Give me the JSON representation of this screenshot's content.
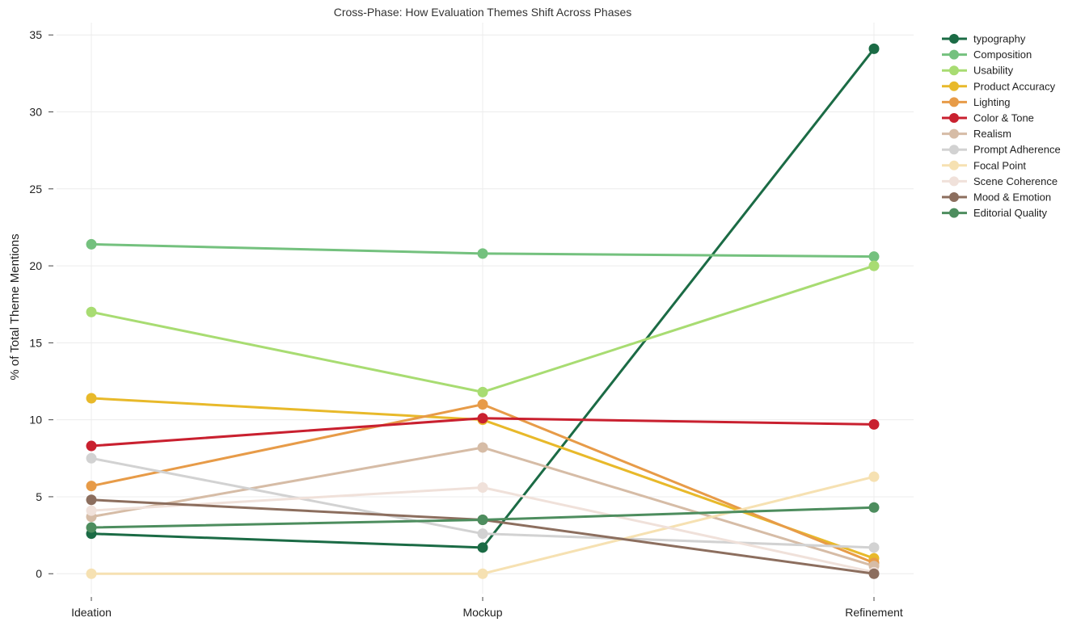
{
  "chart_data": {
    "type": "line",
    "title": "Cross-Phase: How Evaluation Themes Shift Across Phases",
    "xlabel": "",
    "ylabel": "% of Total Theme Mentions",
    "categories": [
      "Ideation",
      "Mockup",
      "Refinement"
    ],
    "ylim": [
      -1.3,
      35.8
    ],
    "yticks": [
      0,
      5,
      10,
      15,
      20,
      25,
      30,
      35
    ],
    "grid": true,
    "legend_position": "top-right",
    "series": [
      {
        "name": "typography",
        "color": "#1b6b45",
        "values": [
          2.6,
          1.7,
          34.1
        ]
      },
      {
        "name": "Composition",
        "color": "#74c17e",
        "values": [
          21.4,
          20.8,
          20.6
        ]
      },
      {
        "name": "Usability",
        "color": "#a8dc72",
        "values": [
          17.0,
          11.8,
          20.0
        ]
      },
      {
        "name": "Product Accuracy",
        "color": "#e8b92a",
        "values": [
          11.4,
          10.0,
          1.0
        ]
      },
      {
        "name": "Lighting",
        "color": "#e79b48",
        "values": [
          5.7,
          11.0,
          0.7
        ]
      },
      {
        "name": "Color & Tone",
        "color": "#c9202f",
        "values": [
          8.3,
          10.1,
          9.7
        ]
      },
      {
        "name": "Realism",
        "color": "#d6bca6",
        "values": [
          3.7,
          8.2,
          0.5
        ]
      },
      {
        "name": "Prompt Adherence",
        "color": "#d2d2d2",
        "values": [
          7.5,
          2.6,
          1.7
        ]
      },
      {
        "name": "Focal Point",
        "color": "#f6e1b2",
        "values": [
          0.0,
          0.0,
          6.3
        ]
      },
      {
        "name": "Scene Coherence",
        "color": "#f0e1da",
        "values": [
          4.1,
          5.6,
          0.1
        ]
      },
      {
        "name": "Mood & Emotion",
        "color": "#8c6e5e",
        "values": [
          4.8,
          3.5,
          0.0
        ]
      },
      {
        "name": "Editorial Quality",
        "color": "#4d8d5e",
        "values": [
          3.0,
          3.5,
          4.3
        ]
      }
    ]
  }
}
